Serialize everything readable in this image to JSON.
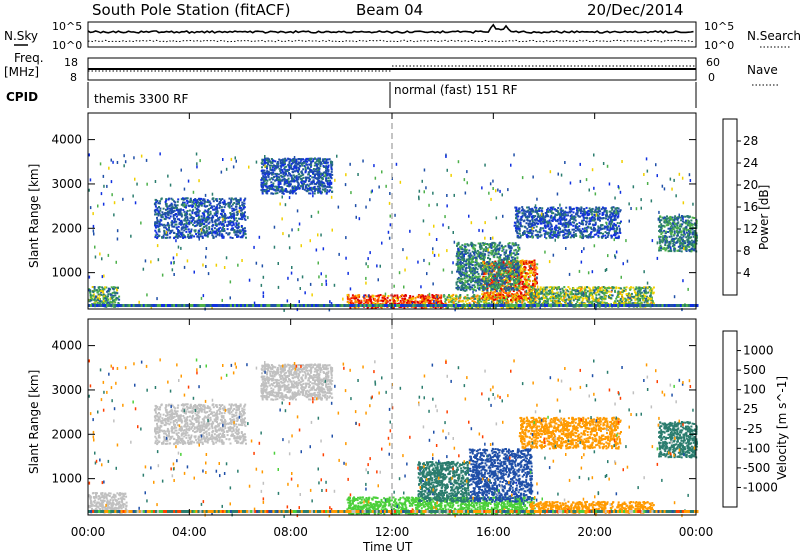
{
  "header": {
    "station": "South Pole Station (fitACF)",
    "beam": "Beam 04",
    "date": "20/Dec/2014"
  },
  "side_labels": {
    "nsky": "N.Sky",
    "freq_line1": "Freq.",
    "freq_line2": "[MHz]",
    "cpid": "CPID",
    "nsearch": "N.Search",
    "nave": "Nave"
  },
  "nsky_ticks": [
    "10^5",
    "10^0"
  ],
  "nsearch_ticks": [
    "10^5",
    "10^0"
  ],
  "freq_ticks": [
    "18",
    "8"
  ],
  "nave_ticks": [
    "60",
    "0"
  ],
  "cpid_labels": [
    "themis 3300 RF",
    "normal (fast) 151 RF"
  ],
  "x_axis": {
    "label": "Time UT",
    "ticks": [
      "00:00",
      "04:00",
      "08:00",
      "12:00",
      "16:00",
      "20:00",
      "00:00"
    ]
  },
  "colors": {
    "power": [
      "#1030e0",
      "#1f4fa8",
      "#2b7d6e",
      "#4db04a",
      "#f0d000",
      "#ff9000",
      "#ff4a00",
      "#e00000"
    ],
    "velocity": [
      "#e00000",
      "#ff4000",
      "#ff9a00",
      "#c0c0c0",
      "#c0c0c0",
      "#4bd03a",
      "#2b7d6e",
      "#1f4fa8",
      "#1830d0"
    ]
  },
  "chart_data": [
    {
      "type": "heatmap",
      "title": "",
      "xlabel": "Time UT",
      "ylabel": "Slant Range [km]",
      "xlim": [
        "00:00",
        "24:00"
      ],
      "ylim": [
        180,
        4600
      ],
      "y_ticks": [
        "1000",
        "2000",
        "3000",
        "4000"
      ],
      "colorbar_label": "Power [dB]",
      "colorbar_ticks": [
        "4",
        "8",
        "12",
        "16",
        "20",
        "24",
        "28"
      ],
      "colorbar_range": [
        0,
        32
      ],
      "regions": [
        {
          "t0": 10.2,
          "t1": 14.0,
          "r0": 220,
          "r1": 520,
          "value": 28
        },
        {
          "t0": 14.0,
          "t1": 17.6,
          "r0": 220,
          "r1": 520,
          "value": 16
        },
        {
          "t0": 15.5,
          "t1": 17.7,
          "r0": 400,
          "r1": 1300,
          "value": 24
        },
        {
          "t0": 14.5,
          "t1": 17.0,
          "r0": 600,
          "r1": 1700,
          "value": 10
        },
        {
          "t0": 17.4,
          "t1": 22.3,
          "r0": 250,
          "r1": 700,
          "value": 14
        },
        {
          "t0": 2.6,
          "t1": 6.2,
          "r0": 1800,
          "r1": 2700,
          "value": 6
        },
        {
          "t0": 6.8,
          "t1": 9.6,
          "r0": 2800,
          "r1": 3600,
          "value": 6
        },
        {
          "t0": 16.8,
          "t1": 21.0,
          "r0": 1800,
          "r1": 2500,
          "value": 6
        },
        {
          "t0": 22.5,
          "t1": 24.0,
          "r0": 1500,
          "r1": 2300,
          "value": 10
        },
        {
          "t0": 0.0,
          "t1": 1.2,
          "r0": 250,
          "r1": 700,
          "value": 12
        }
      ]
    },
    {
      "type": "heatmap",
      "title": "",
      "xlabel": "Time UT",
      "ylabel": "Slant Range [km]",
      "xlim": [
        "00:00",
        "24:00"
      ],
      "ylim": [
        180,
        4600
      ],
      "y_ticks": [
        "1000",
        "2000",
        "3000",
        "4000"
      ],
      "colorbar_label": "Velocity [m s^-1]",
      "colorbar_ticks": [
        "-1000",
        "-500",
        "-100",
        "-25",
        "25",
        "100",
        "500",
        "1000"
      ],
      "colorbar_range": [
        -1200,
        1200
      ],
      "regions": [
        {
          "t0": 10.2,
          "t1": 14.0,
          "r0": 220,
          "r1": 600,
          "value": 60
        },
        {
          "t0": 14.0,
          "t1": 17.6,
          "r0": 220,
          "r1": 600,
          "value": 60
        },
        {
          "t0": 15.0,
          "t1": 17.5,
          "r0": 500,
          "r1": 1700,
          "value": 800
        },
        {
          "t0": 13.0,
          "t1": 15.0,
          "r0": 500,
          "r1": 1400,
          "value": 400
        },
        {
          "t0": 17.4,
          "t1": 22.3,
          "r0": 250,
          "r1": 500,
          "value": -300
        },
        {
          "t0": 2.6,
          "t1": 6.2,
          "r0": 1800,
          "r1": 2700,
          "value": 0
        },
        {
          "t0": 6.8,
          "t1": 9.6,
          "r0": 2800,
          "r1": 3600,
          "value": 0
        },
        {
          "t0": 17.0,
          "t1": 21.0,
          "r0": 1700,
          "r1": 2400,
          "value": -200
        },
        {
          "t0": 22.5,
          "t1": 24.0,
          "r0": 1500,
          "r1": 2300,
          "value": 200
        },
        {
          "t0": 0.0,
          "t1": 1.5,
          "r0": 250,
          "r1": 700,
          "value": 0
        }
      ]
    }
  ]
}
